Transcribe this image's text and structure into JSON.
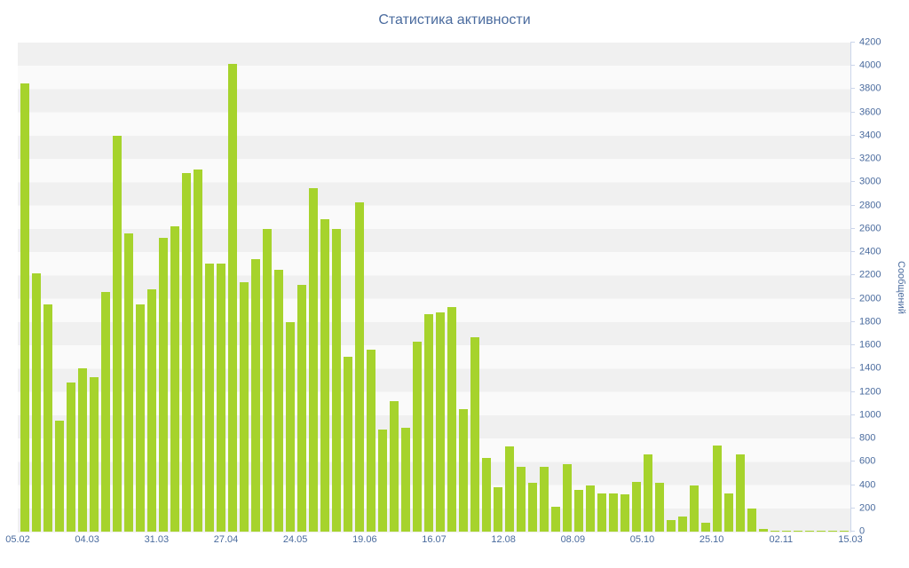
{
  "chart_data": {
    "type": "bar",
    "title": "Статистика активности",
    "ylabel": "Сообщений",
    "xlabel": "",
    "ylim": [
      0,
      4200
    ],
    "ytick_step": 200,
    "grid": "horizontal-bands",
    "legend": "none",
    "x_labels": [
      "05.02",
      "04.03",
      "31.03",
      "27.04",
      "24.05",
      "19.06",
      "16.07",
      "12.08",
      "08.09",
      "05.10",
      "25.10",
      "02.11",
      "15.03"
    ],
    "values": [
      3850,
      2220,
      1950,
      950,
      1280,
      1400,
      1330,
      2060,
      3400,
      2560,
      1950,
      2080,
      2520,
      2620,
      3080,
      3110,
      2300,
      2300,
      4020,
      2140,
      2340,
      2600,
      2250,
      1800,
      2120,
      2950,
      2680,
      2600,
      1500,
      2830,
      1560,
      880,
      1120,
      890,
      1630,
      1870,
      1880,
      1930,
      1050,
      1670,
      630,
      380,
      730,
      560,
      420,
      560,
      210,
      580,
      360,
      400,
      330,
      330,
      320,
      430,
      660,
      420,
      100,
      130,
      400,
      80,
      740,
      330,
      660,
      200,
      20,
      10,
      10,
      10,
      5,
      5,
      5,
      5
    ],
    "colors": {
      "bar": "#a6d32c",
      "text": "#4a6b9e",
      "band_a": "#f0f0f0",
      "band_b": "#fafafa",
      "axis_line": "#ccd6eb",
      "background": "#ffffff"
    }
  }
}
